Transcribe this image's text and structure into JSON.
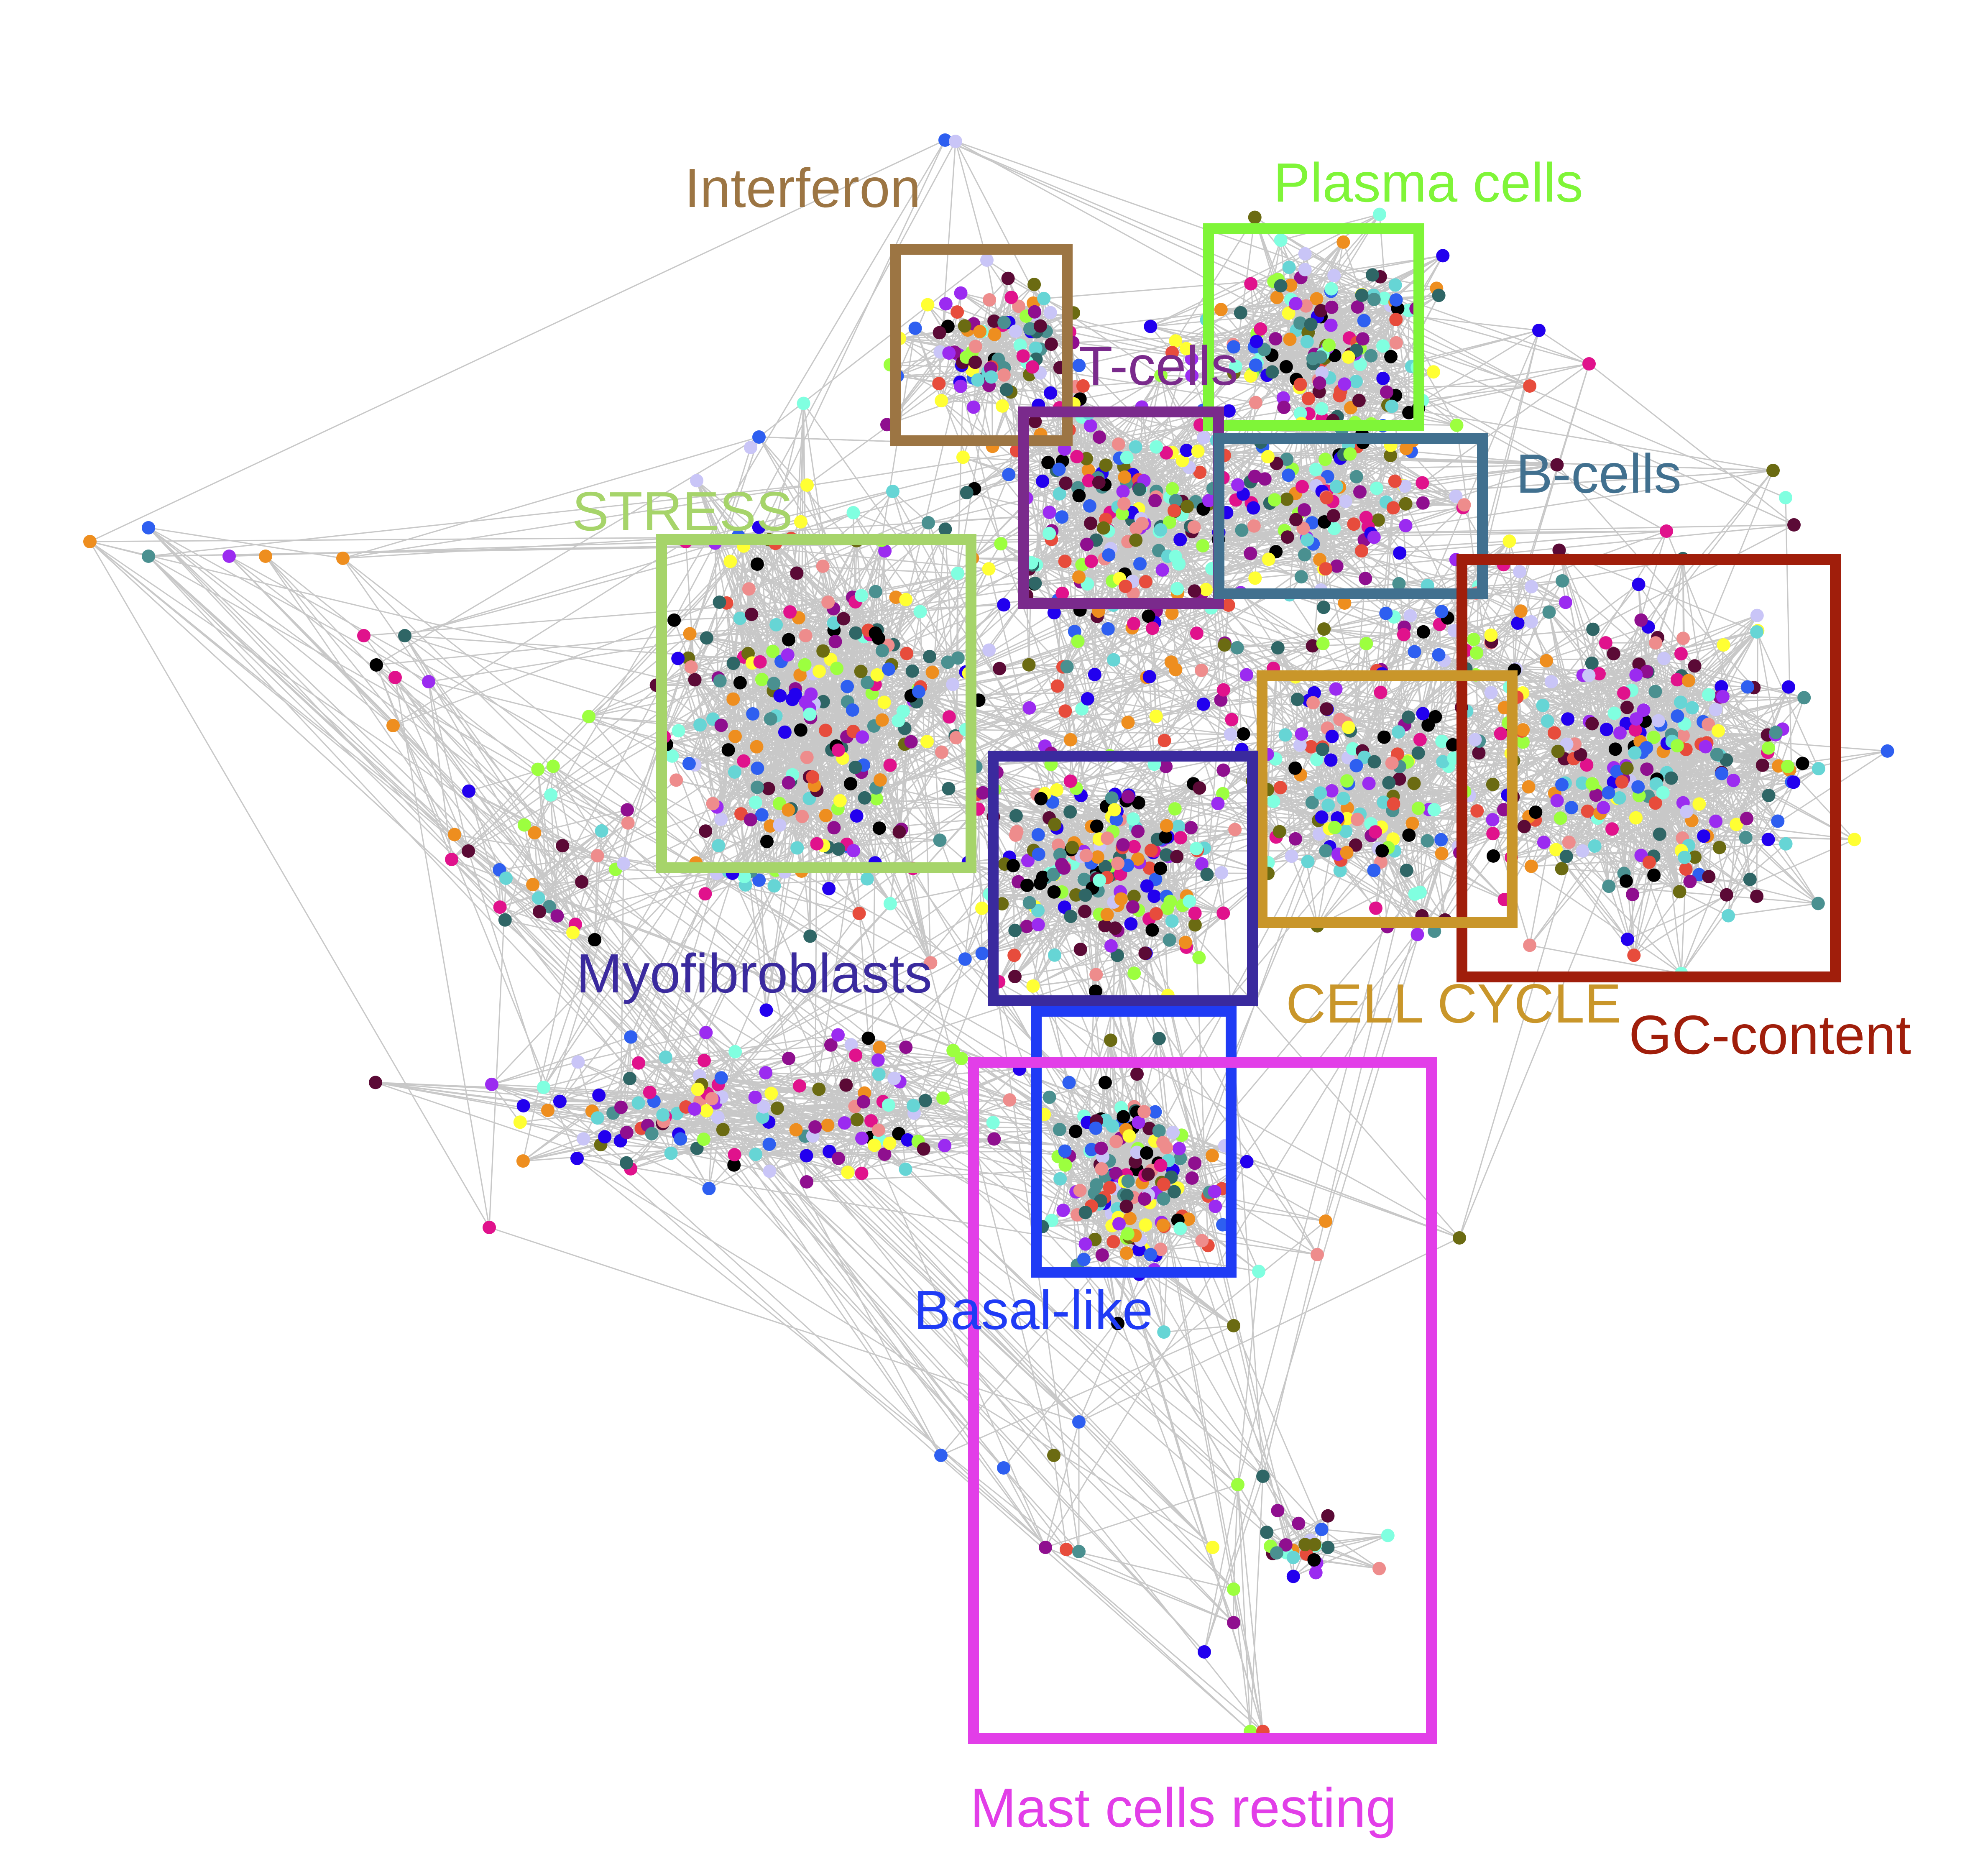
{
  "figure": {
    "modules": [
      {
        "id": "interferon",
        "label": "Interferon",
        "color": "#9C7543"
      },
      {
        "id": "plasma-cells",
        "label": "Plasma cells",
        "color": "#7FF538"
      },
      {
        "id": "t-cells",
        "label": "T-cells",
        "color": "#7A2A8C"
      },
      {
        "id": "b-cells",
        "label": "B-cells",
        "color": "#41708F"
      },
      {
        "id": "stress",
        "label": "STRESS",
        "color": "#A6D46A"
      },
      {
        "id": "gc-content",
        "label": "GC-content",
        "color": "#A01E0B"
      },
      {
        "id": "cell-cycle",
        "label": "CELL CYCLE",
        "color": "#C9962A"
      },
      {
        "id": "myofibroblasts",
        "label": "Myofibroblasts",
        "color": "#3A2A9E"
      },
      {
        "id": "basal-like",
        "label": "Basal-like",
        "color": "#1F3BF5"
      },
      {
        "id": "mast-cells-resting",
        "label": "Mast cells resting",
        "color": "#E23EE8"
      }
    ],
    "edge_color": "#c8c8c8",
    "node_palette": [
      "#4A9090",
      "#2E5FF0",
      "#2200EE",
      "#9B2BF0",
      "#C9C5F7",
      "#FFFF33",
      "#9CFF3F",
      "#80FFE0",
      "#6B6B12",
      "#5B0A36",
      "#E0128C",
      "#E74C3C",
      "#EE8E1F",
      "#EE8C8C",
      "#66D5D5",
      "#000000",
      "#2F6666",
      "#8F0F8F"
    ]
  }
}
